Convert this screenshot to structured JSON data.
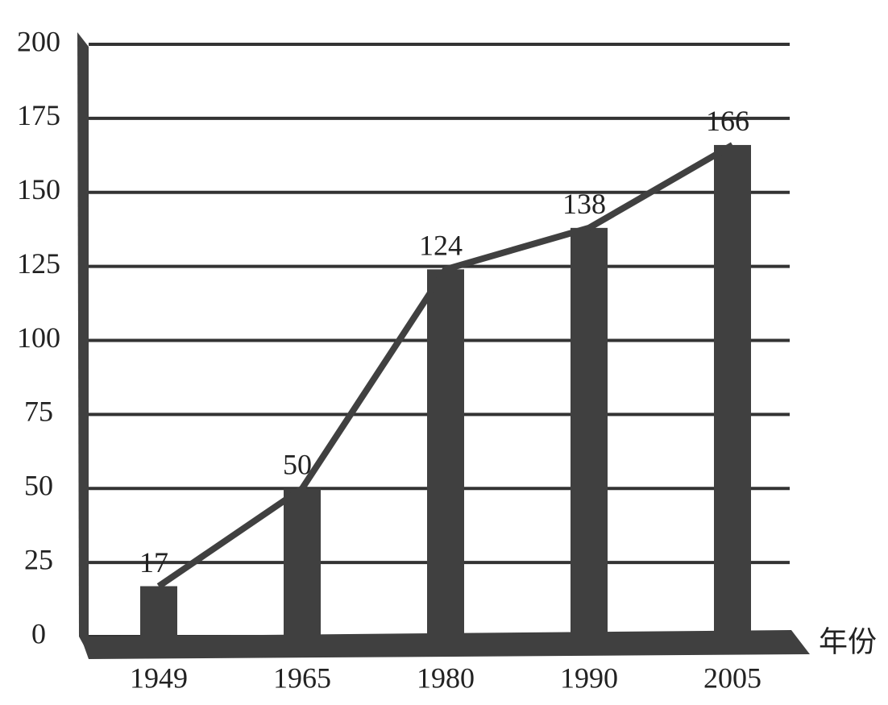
{
  "chart_data": {
    "type": "bar",
    "xlabel": "年份",
    "categories": [
      "1949",
      "1965",
      "1980",
      "1990",
      "2005"
    ],
    "values": [
      17,
      50,
      124,
      138,
      166
    ],
    "color": "#404040",
    "line": true,
    "ylim": [
      0,
      200
    ],
    "yticks": [
      0,
      25,
      50,
      75,
      100,
      125,
      150,
      175,
      200
    ],
    "grid": true
  }
}
